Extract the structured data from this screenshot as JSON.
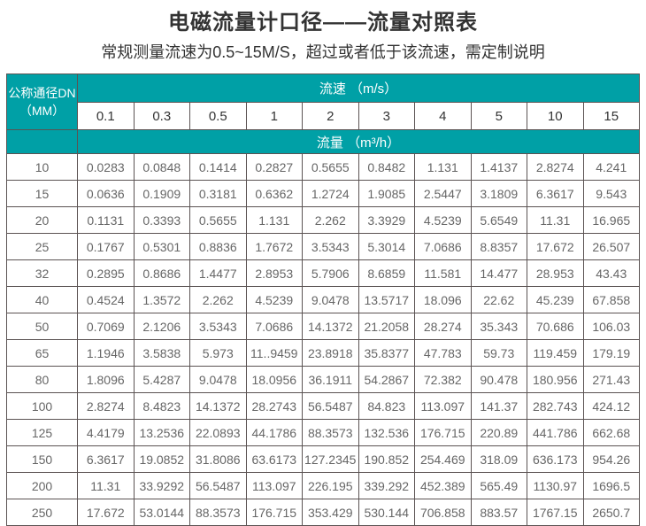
{
  "title": "电磁流量计口径——流量对照表",
  "subtitle": "常规测量流速为0.5~15M/S，超过或者低于该流速，需定制说明",
  "colors": {
    "header_teal": "#00a0a6",
    "border": "#5b5353",
    "title_text": "#333333",
    "data_text": "#666666",
    "header_text": "#ffffff"
  },
  "chart_data": {
    "type": "table",
    "title": "电磁流量计口径——流量对照表",
    "corner_header": [
      "公称通径DN",
      "（MM）"
    ],
    "velocity_header": "流速 （m/s）",
    "flow_header": "流量 （m³/h）",
    "columns": [
      "0.1",
      "0.3",
      "0.5",
      "1",
      "2",
      "3",
      "4",
      "5",
      "10",
      "15"
    ],
    "rows": [
      {
        "dn": "10",
        "values": [
          "0.0283",
          "0.0848",
          "0.1414",
          "0.2827",
          "0.5655",
          "0.8482",
          "1.131",
          "1.4137",
          "2.8274",
          "4.241"
        ]
      },
      {
        "dn": "15",
        "values": [
          "0.0636",
          "0.1909",
          "0.3181",
          "0.6362",
          "1.2724",
          "1.9085",
          "2.5447",
          "3.1809",
          "6.3617",
          "9.543"
        ]
      },
      {
        "dn": "20",
        "values": [
          "0.1131",
          "0.3393",
          "0.5655",
          "1.131",
          "2.262",
          "3.3929",
          "4.5239",
          "5.6549",
          "11.31",
          "16.965"
        ]
      },
      {
        "dn": "25",
        "values": [
          "0.1767",
          "0.5301",
          "0.8836",
          "1.7672",
          "3.5343",
          "5.3014",
          "7.0686",
          "8.8357",
          "17.672",
          "26.507"
        ]
      },
      {
        "dn": "32",
        "values": [
          "0.2895",
          "0.8686",
          "1.4477",
          "2.8953",
          "5.7906",
          "8.6859",
          "11.581",
          "14.477",
          "28.953",
          "43.43"
        ]
      },
      {
        "dn": "40",
        "values": [
          "0.4524",
          "1.3572",
          "2.262",
          "4.5239",
          "9.0478",
          "13.5717",
          "18.096",
          "22.62",
          "45.239",
          "67.858"
        ]
      },
      {
        "dn": "50",
        "values": [
          "0.7069",
          "2.1206",
          "3.5343",
          "7.0686",
          "14.1372",
          "21.2058",
          "28.274",
          "35.343",
          "70.686",
          "106.03"
        ]
      },
      {
        "dn": "65",
        "values": [
          "1.1946",
          "3.5838",
          "5.973",
          "11..9459",
          "23.8918",
          "35.8377",
          "47.783",
          "59.73",
          "119.459",
          "179.19"
        ]
      },
      {
        "dn": "80",
        "values": [
          "1.8096",
          "5.4287",
          "9.0478",
          "18.0956",
          "36.1911",
          "54.2867",
          "72.382",
          "90.478",
          "180.956",
          "271.43"
        ]
      },
      {
        "dn": "100",
        "values": [
          "2.8274",
          "8.4823",
          "14.1372",
          "28.2743",
          "56.5487",
          "84.823",
          "113.097",
          "141.37",
          "282.743",
          "424.12"
        ]
      },
      {
        "dn": "125",
        "values": [
          "4.4179",
          "13.2536",
          "22.0893",
          "44.1786",
          "88.3573",
          "132.536",
          "176.715",
          "220.89",
          "441.786",
          "662.68"
        ]
      },
      {
        "dn": "150",
        "values": [
          "6.3617",
          "19.0852",
          "31.8086",
          "63.6173",
          "127.2345",
          "190.852",
          "254.469",
          "318.09",
          "636.173",
          "954.26"
        ]
      },
      {
        "dn": "200",
        "values": [
          "11.31",
          "33.9292",
          "56.5487",
          "113.097",
          "226.195",
          "339.292",
          "452.389",
          "565.49",
          "1130.97",
          "1696.5"
        ]
      },
      {
        "dn": "250",
        "values": [
          "17.672",
          "53.0144",
          "88.3573",
          "176.715",
          "353.429",
          "530.144",
          "706.858",
          "883.57",
          "1767.15",
          "2650.7"
        ]
      }
    ]
  }
}
